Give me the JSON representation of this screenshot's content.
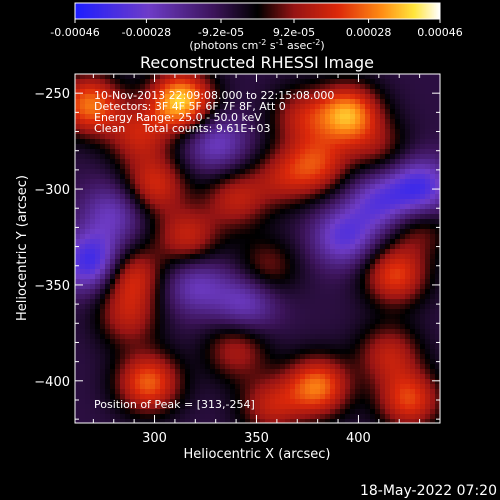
{
  "chart_data": {
    "type": "heatmap",
    "title": "Reconstructed RHESSI Image",
    "xlabel": "Heliocentric X (arcsec)",
    "ylabel": "Heliocentric Y (arcsec)",
    "xlim": [
      261,
      440
    ],
    "ylim": [
      -422,
      -240
    ],
    "x_ticks": [
      300,
      350,
      400
    ],
    "y_ticks": [
      -250,
      -300,
      -350,
      -400
    ],
    "colorbar": {
      "min": -0.00046,
      "max": 0.00046,
      "tick_labels": [
        "-0.00046",
        "-0.00028",
        "-9.2e-05",
        "9.2e-05",
        "0.00028",
        "0.00046"
      ],
      "unit_label": "(photons cm",
      "unit_sup1": "-2",
      "unit_mid": " s",
      "unit_sup2": "-1",
      "unit_mid2": " asec",
      "unit_sup3": "-2",
      "unit_end": ")"
    },
    "annotations": {
      "time_range": "10-Nov-2013 22:09:08.000 to 22:15:08.000",
      "detectors": "Detectors: 3F 4F 5F 6F 7F 8F, Att 0",
      "energy_range": "Energy Range: 25.0 - 50.0 keV",
      "method": "Clean     Total counts: 9.61E+03",
      "peak": "Position of Peak = [313,-254]"
    },
    "hotspots": [
      {
        "x": 313,
        "y": -254,
        "value": 0.00046
      },
      {
        "x": 268,
        "y": -256,
        "value": 0.00036
      },
      {
        "x": 292,
        "y": -272,
        "value": 0.00022
      },
      {
        "x": 372,
        "y": -262,
        "value": 0.0002
      },
      {
        "x": 395,
        "y": -261,
        "value": 0.0004
      },
      {
        "x": 380,
        "y": -287,
        "value": 0.00026
      },
      {
        "x": 300,
        "y": -298,
        "value": 0.00026
      },
      {
        "x": 340,
        "y": -305,
        "value": 0.00022
      },
      {
        "x": 363,
        "y": -294,
        "value": 0.00018
      },
      {
        "x": 316,
        "y": -325,
        "value": 0.00024
      },
      {
        "x": 288,
        "y": -345,
        "value": 0.00028
      },
      {
        "x": 355,
        "y": -341,
        "value": 0.00016
      },
      {
        "x": 430,
        "y": -320,
        "value": 0.00016
      },
      {
        "x": 418,
        "y": -345,
        "value": 0.0003
      },
      {
        "x": 287,
        "y": -367,
        "value": 0.0002
      },
      {
        "x": 297,
        "y": -401,
        "value": 0.00034
      },
      {
        "x": 340,
        "y": -384,
        "value": 0.0002
      },
      {
        "x": 380,
        "y": -403,
        "value": 0.00036
      },
      {
        "x": 425,
        "y": -410,
        "value": 0.0003
      },
      {
        "x": 357,
        "y": -413,
        "value": 0.00022
      },
      {
        "x": 415,
        "y": -386,
        "value": 0.00022
      },
      {
        "x": 410,
        "y": -279,
        "value": 0.00014
      },
      {
        "x": 280,
        "y": -312,
        "value": -0.00018
      },
      {
        "x": 270,
        "y": -338,
        "value": -0.00034
      },
      {
        "x": 330,
        "y": -276,
        "value": -0.0002
      },
      {
        "x": 345,
        "y": -359,
        "value": -0.0002
      },
      {
        "x": 393,
        "y": -325,
        "value": -0.00024
      },
      {
        "x": 410,
        "y": -307,
        "value": -0.00022
      },
      {
        "x": 320,
        "y": -350,
        "value": -0.00018
      },
      {
        "x": 430,
        "y": -300,
        "value": -0.0003
      }
    ]
  },
  "footer": {
    "timestamp": "18-May-2022 07:20"
  }
}
